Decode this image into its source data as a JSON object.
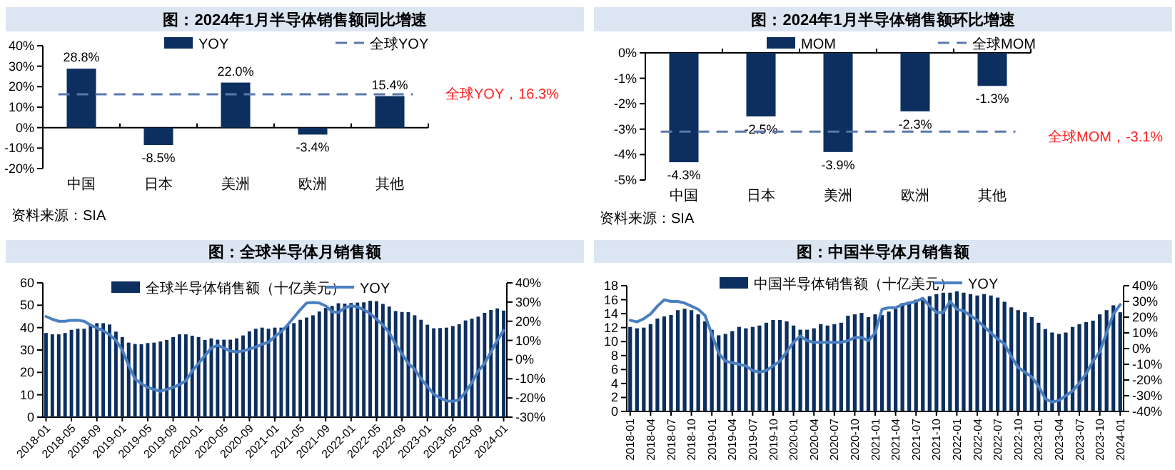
{
  "chart_data": [
    {
      "type": "bar",
      "title": "图：2024年1月半导体销售额同比增速",
      "categories": [
        "中国",
        "日本",
        "美洲",
        "欧洲",
        "其他"
      ],
      "series": [
        {
          "name": "YOY",
          "color": "#0d2f5f",
          "values": [
            28.8,
            -8.5,
            22.0,
            -3.4,
            15.4
          ],
          "value_labels": [
            "28.8%",
            "-8.5%",
            "22.0%",
            "-3.4%",
            "15.4%"
          ]
        }
      ],
      "ylim": [
        -20,
        40
      ],
      "yticks": [
        {
          "value": -20,
          "label": "-20%"
        },
        {
          "value": -10,
          "label": "-10%"
        },
        {
          "value": 0,
          "label": "0%"
        },
        {
          "value": 10,
          "label": "10%"
        },
        {
          "value": 20,
          "label": "20%"
        },
        {
          "value": 30,
          "label": "30%"
        },
        {
          "value": 40,
          "label": "40%"
        }
      ],
      "ref_lines": [
        {
          "axis": "y",
          "value": 16.3,
          "label": "全球YOY",
          "color": "#5a78ad",
          "line_style": "dashed"
        }
      ],
      "annotations": [
        "全球YOY，16.3%",
        "资料来源：SIA"
      ],
      "legend": "top"
    },
    {
      "type": "bar",
      "title": "图：2024年1月半导体销售额环比增速",
      "categories": [
        "中国",
        "日本",
        "美洲",
        "欧洲",
        "其他"
      ],
      "series": [
        {
          "name": "MOM",
          "color": "#0d2f5f",
          "values": [
            -4.3,
            -2.5,
            -3.9,
            -2.3,
            -1.3
          ],
          "value_labels": [
            "-4.3%",
            "-2.5%",
            "-3.9%",
            "-2.3%",
            "-1.3%"
          ]
        }
      ],
      "ylim": [
        -5,
        0
      ],
      "yticks": [
        {
          "value": -5,
          "label": "-5%"
        },
        {
          "value": -4,
          "label": "-4%"
        },
        {
          "value": -3,
          "label": "-3%"
        },
        {
          "value": -2,
          "label": "-2%"
        },
        {
          "value": -1,
          "label": "-1%"
        },
        {
          "value": 0,
          "label": "0%"
        }
      ],
      "ref_lines": [
        {
          "axis": "y",
          "value": -3.1,
          "label": "全球MOM",
          "color": "#5a78ad",
          "line_style": "dashed"
        }
      ],
      "annotations": [
        "全球MOM，-3.1%",
        "资料来源：SIA"
      ],
      "legend": "top"
    },
    {
      "type": "bar",
      "title": "图：全球半导体月销售额",
      "categories": [
        "2018-01",
        null,
        null,
        null,
        "2018-05",
        null,
        null,
        null,
        "2018-09",
        null,
        null,
        null,
        "2019-01",
        null,
        null,
        null,
        "2019-05",
        null,
        null,
        null,
        "2019-09",
        null,
        null,
        null,
        "2020-01",
        null,
        null,
        null,
        "2020-05",
        null,
        null,
        null,
        "2020-09",
        null,
        null,
        null,
        "2021-01",
        null,
        null,
        null,
        "2021-05",
        null,
        null,
        null,
        "2021-09",
        null,
        null,
        null,
        "2022-01",
        null,
        null,
        null,
        "2022-05",
        null,
        null,
        null,
        "2022-09",
        null,
        null,
        null,
        "2023-01",
        null,
        null,
        null,
        "2023-05",
        null,
        null,
        null,
        "2023-09",
        null,
        null,
        null,
        "2024-01"
      ],
      "series": [
        {
          "name": "全球半导体销售额（十亿美元）",
          "color": "#0d2f5f",
          "values": [
            37.6,
            37.0,
            37.0,
            37.6,
            39.0,
            39.5,
            39.5,
            40.9,
            42.0,
            42.0,
            41.4,
            38.2,
            35.8,
            33.3,
            32.7,
            32.6,
            33.1,
            33.3,
            33.8,
            34.5,
            35.8,
            37.0,
            37.0,
            36.4,
            35.8,
            34.5,
            35.2,
            34.6,
            34.6,
            34.6,
            35.2,
            36.5,
            38.3,
            39.5,
            40.0,
            39.5,
            40.0,
            40.0,
            41.0,
            42.0,
            43.5,
            44.5,
            45.5,
            47.2,
            48.8,
            49.7,
            50.9,
            50.7,
            51.0,
            51.2,
            51.3,
            52.0,
            51.8,
            50.6,
            49.4,
            47.4,
            47.0,
            46.9,
            45.5,
            43.5,
            41.3,
            39.7,
            39.8,
            40.0,
            40.7,
            41.5,
            43.2,
            44.0,
            44.9,
            46.6,
            47.9,
            48.6,
            47.6
          ]
        },
        {
          "name": "YOY",
          "type": "line",
          "axis": "y2",
          "color": "#4a7fc1",
          "values": [
            22.5,
            21,
            20,
            20,
            20.5,
            20.5,
            20,
            18,
            16.5,
            15,
            13,
            10,
            5,
            -3,
            -10,
            -12.5,
            -14.5,
            -15.5,
            -16.5,
            -15.5,
            -14.5,
            -13,
            -11,
            -6,
            -2,
            2,
            6,
            7.5,
            6,
            4.5,
            4,
            4.5,
            5.5,
            6.5,
            8,
            9,
            12,
            14.5,
            18,
            22,
            26,
            29.5,
            29.8,
            29.5,
            28,
            25,
            24.5,
            27,
            28,
            27.5,
            26,
            24,
            21,
            18,
            14,
            8,
            3,
            -2,
            -5,
            -10,
            -14,
            -18,
            -20,
            -21.5,
            -21.7,
            -21,
            -17,
            -12,
            -6,
            -2,
            4,
            10,
            15.2
          ]
        }
      ],
      "ylim": [
        0,
        60
      ],
      "yticks": [
        0,
        10,
        20,
        30,
        40,
        50,
        60
      ],
      "y2lim": [
        -30,
        40
      ],
      "y2ticks": [
        {
          "value": -30,
          "label": "-30%"
        },
        {
          "value": -20,
          "label": "-20%"
        },
        {
          "value": -10,
          "label": "-10%"
        },
        {
          "value": 0,
          "label": "0%"
        },
        {
          "value": 10,
          "label": "10%"
        },
        {
          "value": 20,
          "label": "20%"
        },
        {
          "value": 30,
          "label": "30%"
        },
        {
          "value": 40,
          "label": "40%"
        }
      ],
      "legend": "top"
    },
    {
      "type": "bar",
      "title": "图：中国半导体月销售额",
      "categories": [
        "2018-01",
        null,
        null,
        "2018-04",
        null,
        null,
        "2018-07",
        null,
        null,
        "2018-10",
        null,
        null,
        "2019-01",
        null,
        null,
        "2019-04",
        null,
        null,
        "2019-07",
        null,
        null,
        "2019-10",
        null,
        null,
        "2020-01",
        null,
        null,
        "2020-04",
        null,
        null,
        "2020-07",
        null,
        null,
        "2020-10",
        null,
        null,
        "2021-01",
        null,
        null,
        "2021-04",
        null,
        null,
        "2021-07",
        null,
        null,
        "2021-10",
        null,
        null,
        "2022-01",
        null,
        null,
        "2022-04",
        null,
        null,
        "2022-07",
        null,
        null,
        "2022-10",
        null,
        null,
        "2023-01",
        null,
        null,
        "2023-04",
        null,
        null,
        "2023-07",
        null,
        null,
        "2023-10",
        null,
        null,
        "2024-01"
      ],
      "series": [
        {
          "name": "中国半导体销售额（十亿美元）",
          "color": "#0d2f5f",
          "values": [
            12.1,
            11.9,
            12.0,
            12.5,
            13.3,
            13.6,
            13.8,
            14.5,
            14.7,
            14.5,
            13.9,
            12.9,
            11.7,
            10.9,
            11.1,
            11.5,
            12.1,
            11.9,
            12.1,
            12.3,
            12.7,
            13.1,
            13.1,
            12.9,
            12.3,
            11.7,
            11.7,
            11.9,
            12.5,
            12.3,
            12.5,
            12.7,
            13.7,
            13.9,
            14.1,
            13.5,
            13.9,
            13.8,
            14.3,
            14.7,
            15.5,
            15.7,
            16.0,
            16.2,
            16.5,
            16.8,
            17.0,
            17.0,
            17.2,
            17.0,
            16.8,
            16.6,
            16.8,
            16.6,
            16.3,
            15.7,
            14.9,
            14.5,
            14.2,
            13.5,
            12.7,
            11.8,
            11.3,
            11.1,
            11.3,
            12.1,
            12.5,
            12.8,
            13.0,
            13.9,
            14.5,
            15.2,
            14.2
          ]
        },
        {
          "name": "YOY",
          "type": "line",
          "axis": "y2",
          "color": "#4a7fc1",
          "values": [
            18,
            17,
            19,
            22,
            27,
            31,
            30,
            30,
            29,
            27,
            25,
            21,
            9,
            -3,
            -8,
            -9,
            -10,
            -11,
            -14,
            -15,
            -14,
            -11,
            -8,
            -2,
            4,
            8,
            5,
            4,
            4,
            4,
            4,
            4,
            5,
            7,
            7,
            5,
            10,
            25,
            26,
            26,
            28,
            29,
            30,
            32,
            27,
            23,
            23,
            30,
            25,
            24,
            21,
            18,
            14,
            10,
            6,
            3,
            -5,
            -12,
            -15,
            -18,
            -24,
            -32,
            -34,
            -33,
            -30,
            -27,
            -22,
            -16,
            -8,
            -2,
            10,
            22,
            28
          ]
        }
      ],
      "ylim": [
        0,
        18
      ],
      "yticks": [
        0,
        2,
        4,
        6,
        8,
        10,
        12,
        14,
        16,
        18
      ],
      "y2lim": [
        -40,
        40
      ],
      "y2ticks": [
        {
          "value": -40,
          "label": "-40%"
        },
        {
          "value": -30,
          "label": "-30%"
        },
        {
          "value": -20,
          "label": "-20%"
        },
        {
          "value": -10,
          "label": "-10%"
        },
        {
          "value": 0,
          "label": "0%"
        },
        {
          "value": 10,
          "label": "10%"
        },
        {
          "value": 20,
          "label": "20%"
        },
        {
          "value": 30,
          "label": "30%"
        },
        {
          "value": 40,
          "label": "40%"
        }
      ],
      "legend": "top"
    }
  ]
}
